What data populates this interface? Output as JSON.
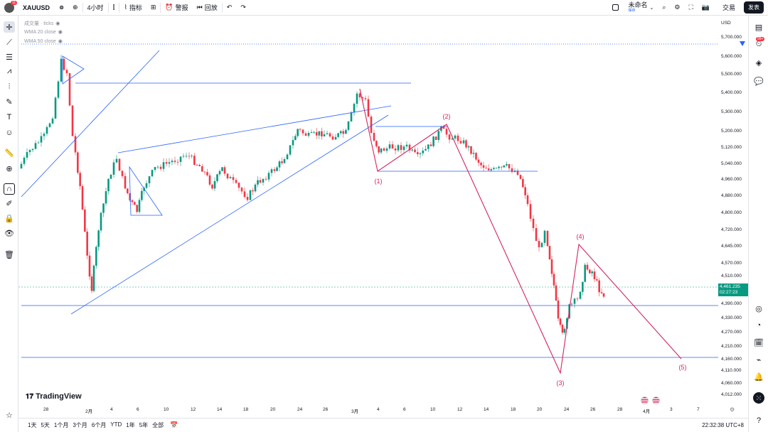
{
  "topbar": {
    "avatar_badge": "11",
    "symbol": "XAUUSD",
    "interval": "4小时",
    "indicators_label": "指标",
    "alert_label": "警报",
    "replay_label": "回放",
    "layout_name": "未命名",
    "layout_sub": "保存",
    "trade_label": "交易",
    "publish_label": "发表"
  },
  "legend": {
    "volume": "成交量 · ticks",
    "wma20": "WMA 20 close",
    "wma50": "WMA 50 close"
  },
  "price_axis": {
    "currency": "USD",
    "labels": [
      "5,700.000",
      "5,600.000",
      "5,500.000",
      "5,400.000",
      "5,300.000",
      "5,200.000",
      "5,120.000",
      "5,040.000",
      "4,960.000",
      "4,880.000",
      "4,800.000",
      "4,720.000",
      "4,645.000",
      "4,570.000",
      "4,510.000",
      "4,390.000",
      "4,330.000",
      "4,270.000",
      "4,210.000",
      "4,160.000",
      "4,110.000",
      "4,060.000",
      "4,012.000"
    ],
    "current_price": "4,461.235",
    "countdown": "02:27:23"
  },
  "time_axis": {
    "labels": [
      "28",
      "2月",
      "4",
      "6",
      "10",
      "12",
      "14",
      "18",
      "20",
      "24",
      "26",
      "3月",
      "4",
      "6",
      "10",
      "12",
      "14",
      "18",
      "20",
      "24",
      "26",
      "28",
      "4月",
      "3",
      "7"
    ]
  },
  "waves": {
    "w1": "(1)",
    "w2": "(2)",
    "w3": "(3)",
    "w4": "(4)",
    "w5": "(5)"
  },
  "brand": "TradingView",
  "bottombar": {
    "ranges": [
      "1天",
      "5天",
      "1个月",
      "3个月",
      "6个月",
      "YTD",
      "1年",
      "5年",
      "全部"
    ],
    "clock": "22:32:38 UTC+8"
  },
  "right_badge": "99+",
  "colors": {
    "up": "#089981",
    "down": "#f23645",
    "wave": "#d6245e",
    "line": "#2962ff",
    "price_tag": "#089981"
  }
}
